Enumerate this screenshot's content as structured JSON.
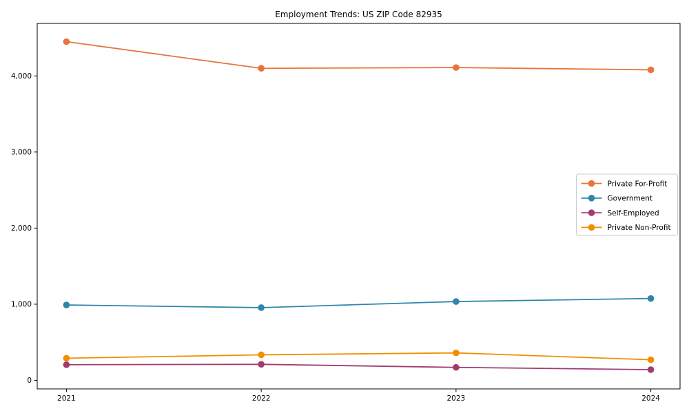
{
  "chart_data": {
    "type": "line",
    "title": "Employment Trends: US ZIP Code 82935",
    "x": [
      2021,
      2022,
      2023,
      2024
    ],
    "xtick_labels": [
      "2021",
      "2022",
      "2023",
      "2024"
    ],
    "yticks": [
      0,
      1000,
      2000,
      3000,
      4000
    ],
    "ytick_labels": [
      "0",
      "1,000",
      "2,000",
      "3,000",
      "4,000"
    ],
    "xlim": [
      2020.85,
      2024.15
    ],
    "ylim": [
      -113,
      4690
    ],
    "grid": false,
    "marker": "circle",
    "legend_position": "center-right-inside",
    "series": [
      {
        "name": "Private For-Profit",
        "color": "#E8743B",
        "values": [
          4450,
          4100,
          4110,
          4080
        ]
      },
      {
        "name": "Government",
        "color": "#2E86AB",
        "values": [
          990,
          955,
          1035,
          1075
        ]
      },
      {
        "name": "Self-Employed",
        "color": "#A23B72",
        "values": [
          205,
          210,
          170,
          140
        ]
      },
      {
        "name": "Private Non-Profit",
        "color": "#F18F01",
        "values": [
          290,
          335,
          360,
          270
        ]
      }
    ],
    "axis_color": "#000000",
    "legend_border_color": "#cccccc",
    "background_color": "#ffffff"
  }
}
